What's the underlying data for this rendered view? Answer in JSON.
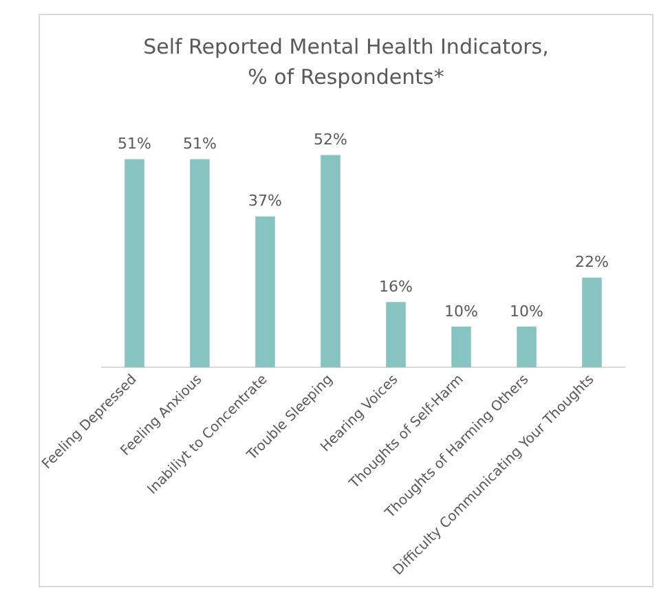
{
  "chart_data": {
    "type": "bar",
    "title": "Self Reported Mental Health Indicators, % of Respondents*",
    "categories": [
      "Feeling Depressed",
      "Feeling Anxious",
      "Inabiliyt to Concentrate",
      "Trouble Sleeping",
      "Hearing Voices",
      "Thoughts of Self-Harm",
      "Thoughts of Harming Others",
      "Difficulty Communicating Your Thoughts"
    ],
    "values": [
      51,
      51,
      37,
      52,
      16,
      10,
      10,
      22
    ],
    "value_labels": [
      "51%",
      "51%",
      "37%",
      "52%",
      "16%",
      "10%",
      "10%",
      "22%"
    ],
    "color": "#86c3c1",
    "grid": false,
    "legend": false
  }
}
